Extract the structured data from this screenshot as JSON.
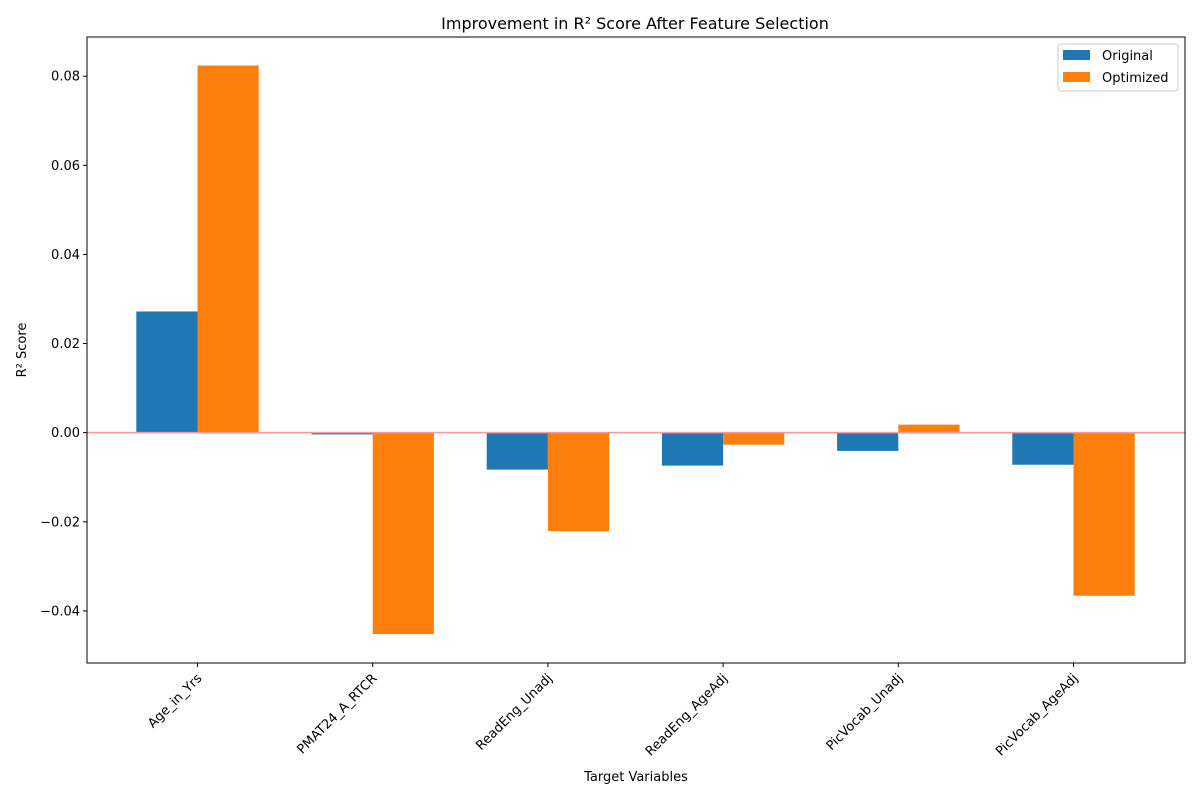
{
  "chart_data": {
    "type": "bar",
    "title": "Improvement in R² Score After Feature Selection",
    "xlabel": "Target Variables",
    "ylabel": "R² Score",
    "categories": [
      "Age_in_Yrs",
      "PMAT24_A_RTCR",
      "ReadEng_Unadj",
      "ReadEng_AgeAdj",
      "PicVocab_Unadj",
      "PicVocab_AgeAdj"
    ],
    "series": [
      {
        "name": "Original",
        "color": "#1f77b4",
        "values": [
          0.0272,
          -0.0004,
          -0.0083,
          -0.0074,
          -0.0041,
          -0.0072
        ]
      },
      {
        "name": "Optimized",
        "color": "#ff7f0e",
        "values": [
          0.0824,
          -0.0452,
          -0.0221,
          -0.0027,
          0.0018,
          -0.0366
        ]
      }
    ],
    "ylim": [
      -0.0517,
      0.0888
    ],
    "yticks": [
      -0.04,
      -0.02,
      0.0,
      0.02,
      0.04,
      0.06,
      0.08
    ],
    "ytick_labels": [
      "−0.04",
      "−0.02",
      "0.00",
      "0.02",
      "0.04",
      "0.06",
      "0.08"
    ],
    "zero_line_color": "#ff9999",
    "grid": false,
    "legend_position": "top-right"
  }
}
